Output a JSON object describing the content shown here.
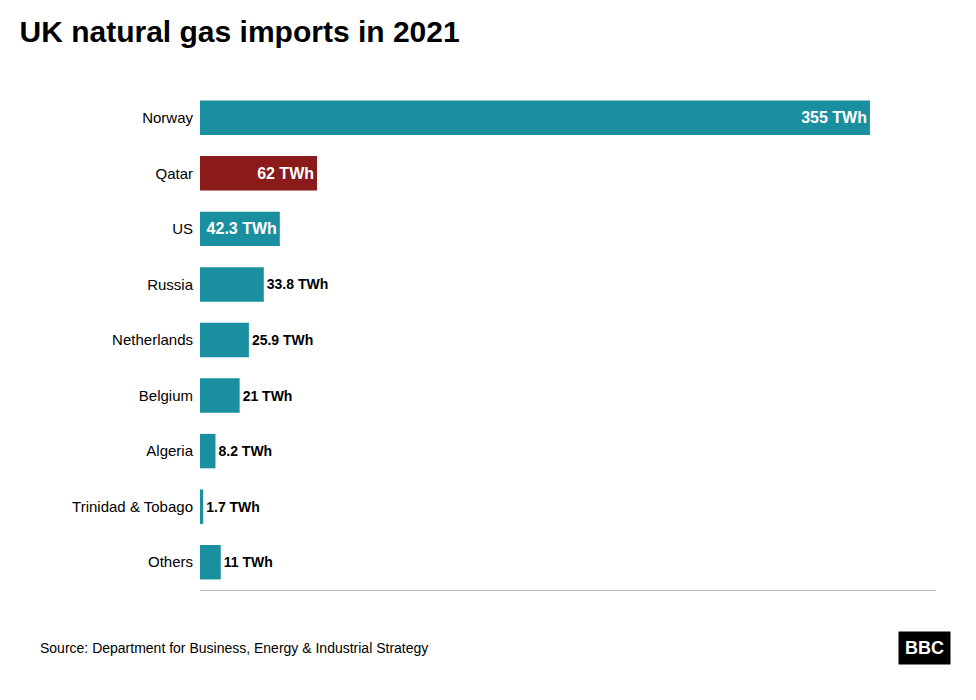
{
  "chart_data": {
    "type": "bar",
    "orientation": "horizontal",
    "title": "UK natural gas imports in 2021",
    "categories": [
      "Norway",
      "Qatar",
      "US",
      "Russia",
      "Netherlands",
      "Belgium",
      "Algeria",
      "Trinidad & Tobago",
      "Others"
    ],
    "values": [
      355,
      62,
      42.3,
      33.8,
      25.9,
      21,
      8.2,
      1.7,
      11
    ],
    "value_labels": [
      "355 TWh",
      "62 TWh",
      "42.3 TWh",
      "33.8 TWh",
      "25.9 TWh",
      "21 TWh",
      "8.2 TWh",
      "1.7 TWh",
      "11 TWh"
    ],
    "colors": [
      "#1a8fa0",
      "#8b1a1a",
      "#1a8fa0",
      "#1a8fa0",
      "#1a8fa0",
      "#1a8fa0",
      "#1a8fa0",
      "#1a8fa0",
      "#1a8fa0"
    ],
    "xlim": [
      0,
      390
    ],
    "data_labels": true,
    "tick_labels": "y",
    "grid": false,
    "annotations": [
      "Source: Department for Business, Energy & Industrial Strategy",
      "BBC"
    ]
  }
}
